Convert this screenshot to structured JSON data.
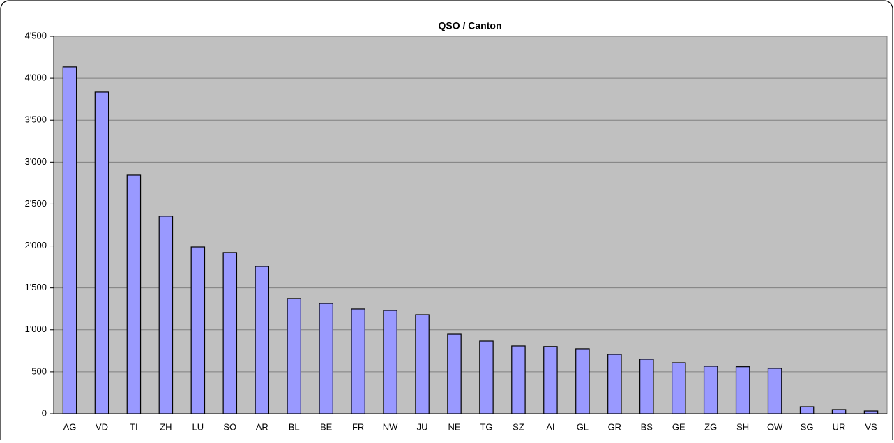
{
  "chart_data": {
    "type": "bar",
    "title": "QSO / Canton",
    "categories": [
      "AG",
      "VD",
      "TI",
      "ZH",
      "LU",
      "SO",
      "AR",
      "BL",
      "BE",
      "FR",
      "NW",
      "JU",
      "NE",
      "TG",
      "SZ",
      "AI",
      "GL",
      "GR",
      "BS",
      "GE",
      "ZG",
      "SH",
      "OW",
      "SG",
      "UR",
      "VS"
    ],
    "values": [
      4135,
      3835,
      2845,
      2355,
      1988,
      1922,
      1755,
      1373,
      1314,
      1248,
      1231,
      1181,
      948,
      865,
      807,
      800,
      774,
      707,
      649,
      607,
      566,
      560,
      541,
      83,
      50,
      33
    ],
    "color": "#9999ff",
    "ylim": [
      0,
      4500
    ],
    "yticks": [
      0,
      500,
      {
        "value": 1000,
        "label": "1'000"
      },
      {
        "value": 1500,
        "label": "1'500"
      },
      {
        "value": 2000,
        "label": "2'000"
      },
      {
        "value": 2500,
        "label": "2'500"
      },
      {
        "value": 3000,
        "label": "3'000"
      },
      {
        "value": 3500,
        "label": "3'500"
      },
      {
        "value": 4000,
        "label": "4'000"
      },
      {
        "value": 4500,
        "label": "4'500"
      }
    ],
    "grid": true
  }
}
